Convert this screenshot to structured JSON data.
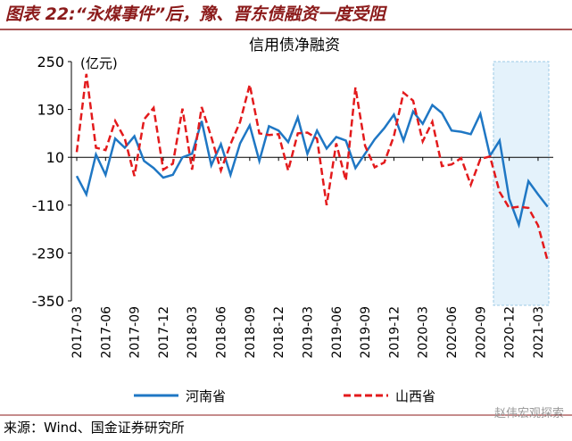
{
  "header": {
    "title": "图表 22:“永煤事件”后，豫、晋东债融资一度受阻"
  },
  "chart_data": {
    "type": "line",
    "title": "信用债净融资",
    "y_label": "(亿元)",
    "categories": [
      "2017-03",
      null,
      null,
      "2017-06",
      null,
      null,
      "2017-09",
      null,
      null,
      "2017-12",
      null,
      null,
      "2018-03",
      null,
      null,
      "2018-06",
      null,
      null,
      "2018-09",
      null,
      null,
      "2018-12",
      null,
      null,
      "2019-03",
      null,
      null,
      "2019-06",
      null,
      null,
      "2019-09",
      null,
      null,
      "2019-12",
      null,
      null,
      "2020-03",
      null,
      null,
      "2020-06",
      null,
      null,
      "2020-09",
      null,
      null,
      "2020-12",
      null,
      null,
      "2021-03",
      null
    ],
    "series": [
      {
        "name": "河南省",
        "color": "#1f77c4",
        "dash": false,
        "values": [
          -37,
          -83,
          17,
          -34,
          57,
          34,
          63,
          1,
          -17,
          -41,
          -34,
          10,
          19,
          101,
          -10,
          43,
          -34,
          45,
          90,
          1,
          88,
          77,
          48,
          110,
          19,
          77,
          32,
          61,
          52,
          -17,
          19,
          55,
          83,
          117,
          52,
          125,
          94,
          141,
          121,
          77,
          74,
          68,
          119,
          14,
          52,
          -94,
          -159,
          -50,
          -83,
          -114
        ]
      },
      {
        "name": "山西省",
        "color": "#e31a1c",
        "dash": true,
        "values": [
          23,
          219,
          34,
          28,
          101,
          57,
          -37,
          105,
          134,
          -21,
          -6,
          132,
          -21,
          136,
          61,
          -23,
          43,
          99,
          192,
          70,
          66,
          68,
          -23,
          70,
          72,
          57,
          -110,
          45,
          -48,
          185,
          39,
          -15,
          -3,
          63,
          172,
          152,
          50,
          99,
          -12,
          -8,
          8,
          -59,
          6,
          12,
          -77,
          -117,
          -114,
          -117,
          -161,
          -250
        ]
      }
    ],
    "ylim": [
      -350,
      250
    ],
    "yticks": [
      -350,
      -230,
      -110,
      10,
      130,
      250
    ]
  },
  "footer": {
    "source": "来源：Wind、国金证券研究所",
    "watermark": "赵伟宏观探索"
  }
}
